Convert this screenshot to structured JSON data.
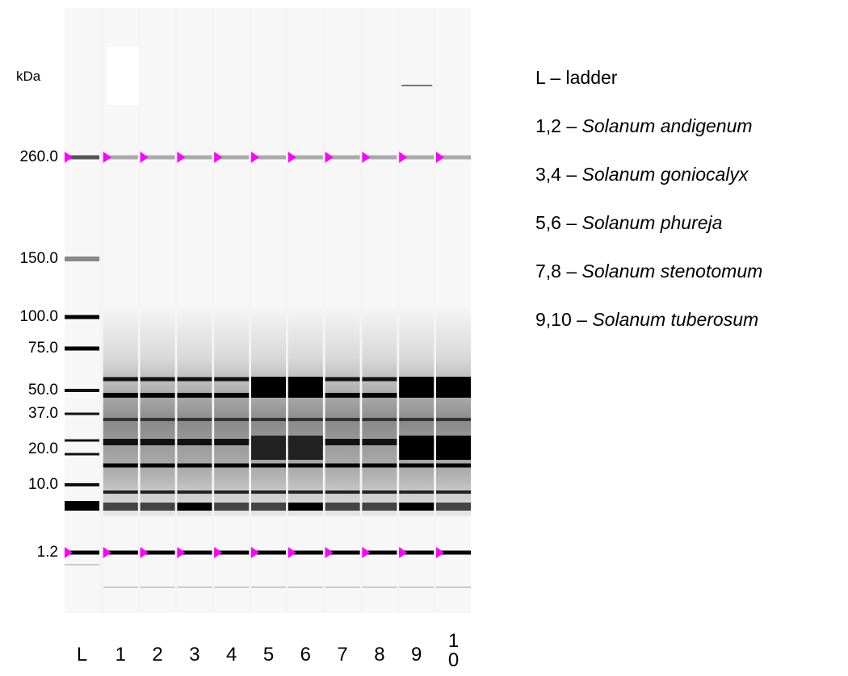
{
  "unit": "kDa",
  "markers": [
    "260.0",
    "150.0",
    "100.0",
    "75.0",
    "50.0",
    "37.0",
    "20.0",
    "10.0",
    "1.2"
  ],
  "lanes": [
    "L",
    "1",
    "2",
    "3",
    "4",
    "5",
    "6",
    "7",
    "8",
    "9",
    "10"
  ],
  "legend": [
    {
      "key": "L – ladder"
    },
    {
      "key": "1,2 –",
      "name": "Solanum andigenum"
    },
    {
      "key": "3,4 –",
      "name": "Solanum goniocalyx"
    },
    {
      "key": "5,6 –",
      "name": "Solanum phureja"
    },
    {
      "key": "7,8 –",
      "name": "Solanum stenotomum"
    },
    {
      "key": "9,10 –",
      "name": "Solanum tuberosum"
    }
  ]
}
